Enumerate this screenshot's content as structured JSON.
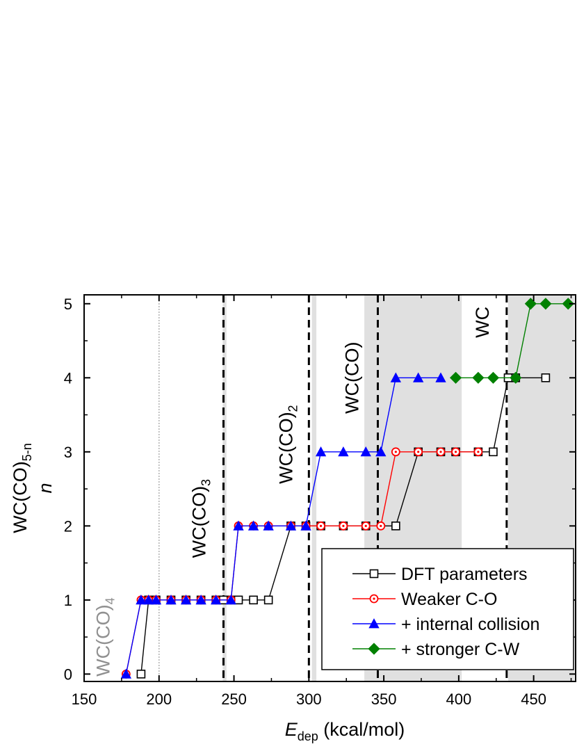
{
  "chart_data": {
    "type": "line",
    "xlabel": {
      "main": "E",
      "sub": "dep",
      "rest": " (kcal/mol)"
    },
    "ylabel": {
      "line1_main": "WC(CO)",
      "line1_sub": "5-n",
      "line2": "n"
    },
    "xlim": [
      150,
      478
    ],
    "ylim": [
      -0.1,
      5.12
    ],
    "xticks": [
      150,
      200,
      250,
      300,
      350,
      400,
      450
    ],
    "yticks": [
      0,
      1,
      2,
      3,
      4,
      5
    ],
    "shaded_regions": [
      {
        "x0": 242.5,
        "x1": 245.0
      },
      {
        "x0": 302.0,
        "x1": 305.0
      },
      {
        "x0": 337.0,
        "x1": 402.0
      },
      {
        "x0": 433.0,
        "x1": 477.0
      }
    ],
    "vertical_lines": [
      {
        "x": 200,
        "style": "dotted",
        "color": "#b0b0b0"
      },
      {
        "x": 243,
        "style": "dashed",
        "color": "#000000"
      },
      {
        "x": 300,
        "style": "dashed",
        "color": "#000000"
      },
      {
        "x": 346,
        "style": "dashed",
        "color": "#000000"
      },
      {
        "x": 432,
        "style": "dashed",
        "color": "#000000"
      }
    ],
    "annotations": [
      {
        "main": "WC(CO)",
        "sub": "4",
        "x": 167,
        "y": 0.5,
        "color": "#909090"
      },
      {
        "main": "WC(CO)",
        "sub": "3",
        "x": 231,
        "y": 2.1,
        "color": "#000000"
      },
      {
        "main": "WC(CO)",
        "sub": "2",
        "x": 289,
        "y": 3.1,
        "color": "#000000"
      },
      {
        "main": "WC(CO)",
        "sub": "",
        "x": 333,
        "y": 4.0,
        "color": "#000000"
      },
      {
        "main": "WC",
        "sub": "",
        "x": 420,
        "y": 4.75,
        "color": "#000000"
      }
    ],
    "legend": {
      "position": "bottom-right"
    },
    "series": [
      {
        "name": "DFT parameters",
        "color": "#000000",
        "marker": "open-square",
        "points": [
          [
            188,
            0
          ],
          [
            193,
            1
          ],
          [
            198,
            1
          ],
          [
            208,
            1
          ],
          [
            218,
            1
          ],
          [
            228,
            1
          ],
          [
            238,
            1
          ],
          [
            243,
            1
          ],
          [
            248,
            1
          ],
          [
            253,
            1
          ],
          [
            263,
            1
          ],
          [
            273,
            1
          ],
          [
            288,
            2
          ],
          [
            298,
            2
          ],
          [
            308,
            2
          ],
          [
            323,
            2
          ],
          [
            338,
            2
          ],
          [
            358,
            2
          ],
          [
            373,
            3
          ],
          [
            388,
            3
          ],
          [
            398,
            3
          ],
          [
            413,
            3
          ],
          [
            423,
            3
          ],
          [
            433,
            4
          ],
          [
            438,
            4
          ],
          [
            458,
            4
          ]
        ]
      },
      {
        "name": "Weaker C-O",
        "color": "#ff0000",
        "marker": "circle-dot",
        "points": [
          [
            178,
            0
          ],
          [
            188,
            1
          ],
          [
            193,
            1
          ],
          [
            198,
            1
          ],
          [
            208,
            1
          ],
          [
            218,
            1
          ],
          [
            228,
            1
          ],
          [
            238,
            1
          ],
          [
            248,
            1
          ],
          [
            253,
            2
          ],
          [
            263,
            2
          ],
          [
            273,
            2
          ],
          [
            288,
            2
          ],
          [
            298,
            2
          ],
          [
            308,
            2
          ],
          [
            323,
            2
          ],
          [
            338,
            2
          ],
          [
            348,
            2
          ],
          [
            358,
            3
          ],
          [
            373,
            3
          ],
          [
            388,
            3
          ],
          [
            398,
            3
          ],
          [
            413,
            3
          ]
        ]
      },
      {
        "name": "+ internal collision",
        "color": "#0000ff",
        "marker": "filled-triangle",
        "points": [
          [
            178,
            0
          ],
          [
            188,
            1
          ],
          [
            193,
            1
          ],
          [
            198,
            1
          ],
          [
            208,
            1
          ],
          [
            218,
            1
          ],
          [
            228,
            1
          ],
          [
            238,
            1
          ],
          [
            248,
            1
          ],
          [
            253,
            2
          ],
          [
            263,
            2
          ],
          [
            273,
            2
          ],
          [
            288,
            2
          ],
          [
            298,
            2
          ],
          [
            308,
            3
          ],
          [
            323,
            3
          ],
          [
            338,
            3
          ],
          [
            348,
            3
          ],
          [
            358,
            4
          ],
          [
            373,
            4
          ],
          [
            388,
            4
          ]
        ]
      },
      {
        "name": "+ stronger C-W",
        "color": "#008000",
        "marker": "filled-diamond",
        "points": [
          [
            398,
            4
          ],
          [
            413,
            4
          ],
          [
            423,
            4
          ],
          [
            438,
            4
          ],
          [
            448,
            5
          ],
          [
            458,
            5
          ],
          [
            473,
            5
          ]
        ]
      }
    ]
  }
}
